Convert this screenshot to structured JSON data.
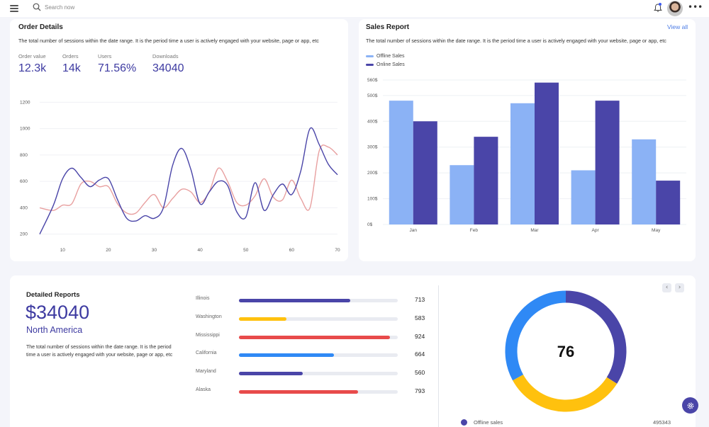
{
  "topbar": {
    "search_placeholder": "Search now",
    "icons": [
      "menu-icon",
      "search-icon",
      "bell-icon",
      "avatar",
      "more-icon"
    ]
  },
  "order_details": {
    "title": "Order Details",
    "description": "The total number of sessions within the date range. It is the period time a user is actively engaged with your website, page or app, etc",
    "stats": [
      {
        "label": "Order value",
        "value": "12.3k"
      },
      {
        "label": "Orders",
        "value": "14k"
      },
      {
        "label": "Users",
        "value": "71.56%"
      },
      {
        "label": "Downloads",
        "value": "34040"
      }
    ]
  },
  "sales_report": {
    "title": "Sales Report",
    "view_all": "View all",
    "description": "The total number of sessions within the date range. It is the period time a user is actively engaged with your website, page or app, etc"
  },
  "chart_data": [
    {
      "type": "line",
      "x": [
        5,
        8,
        10,
        12,
        14,
        16,
        18,
        20,
        22,
        24,
        26,
        28,
        30,
        32,
        34,
        36,
        38,
        40,
        42,
        44,
        46,
        48,
        50,
        52,
        54,
        56,
        58,
        60,
        62,
        64,
        66,
        68,
        70
      ],
      "xticks": [
        10,
        20,
        30,
        40,
        50,
        60,
        70
      ],
      "yticks": [
        200,
        400,
        600,
        800,
        1000,
        1200
      ],
      "xlim": [
        5,
        70
      ],
      "ylim": [
        150,
        1250
      ],
      "series": [
        {
          "values": [
            200,
            420,
            620,
            700,
            630,
            560,
            610,
            620,
            460,
            320,
            300,
            340,
            320,
            400,
            720,
            850,
            690,
            430,
            520,
            600,
            570,
            370,
            330,
            590,
            380,
            500,
            580,
            500,
            680,
            1000,
            880,
            730,
            650
          ],
          "color": "#4a45a8"
        },
        {
          "values": [
            400,
            380,
            420,
            430,
            580,
            600,
            560,
            560,
            430,
            360,
            360,
            440,
            500,
            400,
            470,
            540,
            520,
            440,
            520,
            700,
            600,
            440,
            420,
            490,
            620,
            480,
            460,
            610,
            470,
            400,
            830,
            860,
            800
          ],
          "color": "#e8a0a0"
        }
      ]
    },
    {
      "type": "bar",
      "categories": [
        "Jan",
        "Feb",
        "Mar",
        "Apr",
        "May"
      ],
      "series": [
        {
          "name": "Offline Sales",
          "values": [
            480,
            230,
            470,
            210,
            330
          ],
          "color": "#8bb2f5"
        },
        {
          "name": "Online Sales",
          "values": [
            400,
            340,
            550,
            480,
            170
          ],
          "color": "#4a45a8"
        }
      ],
      "yticks": [
        "0$",
        "100$",
        "200$",
        "300$",
        "400$",
        "500$",
        "560$"
      ],
      "ytick_values": [
        0,
        100,
        200,
        300,
        400,
        500,
        560
      ],
      "ylim": [
        0,
        560
      ]
    },
    {
      "type": "pie",
      "center_value": "76",
      "slices": [
        {
          "value": 0.34,
          "color": "#4a45a8"
        },
        {
          "value": 0.33,
          "color": "#ffc10e"
        },
        {
          "value": 0.33,
          "color": "#2f89f5"
        }
      ]
    }
  ],
  "detailed_reports": {
    "title": "Detailed Reports",
    "amount": "$34040",
    "region": "North America",
    "description": "The total number of sessions within the date range. It is the period time a user is actively engaged with your website, page or app, etc",
    "states": [
      {
        "name": "Illinois",
        "value": "713",
        "fill": 0.7,
        "color": "#4a45a8"
      },
      {
        "name": "Washington",
        "value": "583",
        "fill": 0.3,
        "color": "#ffc10e"
      },
      {
        "name": "Mississippi",
        "value": "924",
        "fill": 0.95,
        "color": "#e84b4b"
      },
      {
        "name": "California",
        "value": "664",
        "fill": 0.6,
        "color": "#2f89f5"
      },
      {
        "name": "Maryland",
        "value": "560",
        "fill": 0.4,
        "color": "#4a45a8"
      },
      {
        "name": "Alaska",
        "value": "793",
        "fill": 0.75,
        "color": "#e84b4b"
      }
    ],
    "legend": {
      "label": "Offline sales",
      "value": "495343"
    }
  }
}
